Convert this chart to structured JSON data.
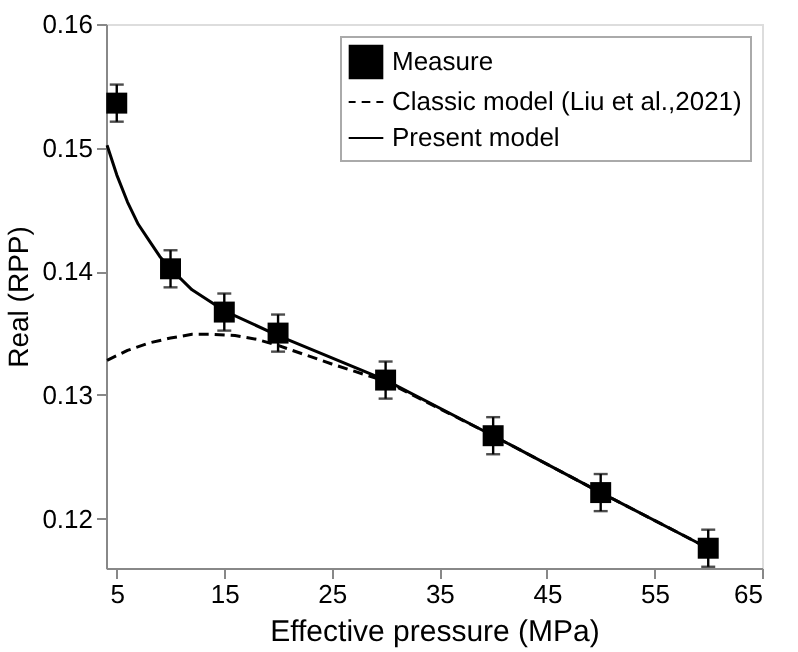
{
  "chart_data": {
    "type": "scatter",
    "xlabel": "Effective pressure (MPa)",
    "ylabel": "Real (RPP)",
    "xlim": [
      4,
      65
    ],
    "xticks": [
      5,
      15,
      25,
      35,
      45,
      55,
      65
    ],
    "ylim": [
      0.116,
      0.16
    ],
    "yticks": [
      0.12,
      0.13,
      0.14,
      0.15,
      0.16
    ],
    "legend": "top right",
    "grid": false,
    "series": [
      {
        "name": "Measure",
        "marker": "square",
        "color": "#000000",
        "x": [
          5,
          10,
          15,
          20,
          30,
          40,
          50,
          60
        ],
        "values": [
          0.1536,
          0.1402,
          0.1367,
          0.135,
          0.1312,
          0.1267,
          0.1221,
          0.1176
        ],
        "errors": [
          0.0015,
          0.0015,
          0.0015,
          0.0015,
          0.0015,
          0.0015,
          0.0015,
          0.0015
        ]
      },
      {
        "name": "Classic model (Liu et al.,2021)",
        "type": "line",
        "line_style": "dashed",
        "color": "#000000",
        "x": [
          4.1,
          6,
          8,
          10,
          12,
          14,
          16,
          18,
          20,
          25,
          30,
          40,
          50,
          60
        ],
        "values": [
          0.1328,
          0.1336,
          0.1342,
          0.1346,
          0.1349,
          0.1349,
          0.1348,
          0.1345,
          0.134,
          0.1325,
          0.1311,
          0.1267,
          0.1221,
          0.1176
        ]
      },
      {
        "name": "Present model",
        "type": "line",
        "line_style": "solid",
        "color": "#000000",
        "x": [
          4.1,
          5,
          6,
          7,
          8,
          9,
          10,
          12,
          15,
          20,
          30,
          40,
          50,
          60
        ],
        "values": [
          0.1502,
          0.1478,
          0.1456,
          0.1438,
          0.1425,
          0.1412,
          0.1402,
          0.1385,
          0.1368,
          0.1348,
          0.1312,
          0.1267,
          0.1221,
          0.1176
        ]
      }
    ]
  }
}
